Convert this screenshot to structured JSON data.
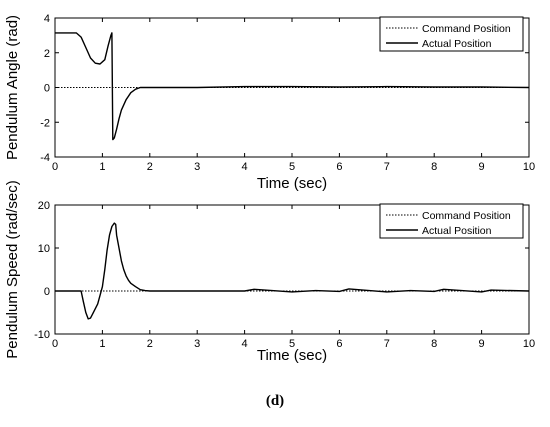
{
  "panel_label": "(d)",
  "chart_data": [
    {
      "type": "line",
      "title": "",
      "xlabel": "Time (sec)",
      "ylabel": "Pendulum Angle (rad)",
      "xlim": [
        0,
        10
      ],
      "ylim": [
        -4,
        4
      ],
      "xticks": [
        "0",
        "1",
        "2",
        "3",
        "4",
        "5",
        "6",
        "7",
        "8",
        "9",
        "10"
      ],
      "yticks": [
        "-4",
        "-2",
        "0",
        "2",
        "4"
      ],
      "grid": false,
      "legend_position": "top-right",
      "series": [
        {
          "name": "Command Position",
          "style": "dotted",
          "x": [
            0,
            10
          ],
          "y": [
            0,
            0
          ]
        },
        {
          "name": "Actual Position",
          "style": "solid",
          "x": [
            0,
            0.45,
            0.55,
            0.65,
            0.75,
            0.85,
            0.95,
            1.05,
            1.12,
            1.18,
            1.2,
            1.22,
            1.25,
            1.3,
            1.35,
            1.4,
            1.5,
            1.6,
            1.7,
            1.8,
            2.0,
            3.0,
            4.0,
            5.0,
            6.0,
            7.0,
            8.0,
            9.0,
            10.0
          ],
          "y": [
            3.14,
            3.14,
            2.9,
            2.3,
            1.7,
            1.4,
            1.35,
            1.6,
            2.4,
            3.0,
            3.14,
            -3.0,
            -2.9,
            -2.4,
            -1.8,
            -1.3,
            -0.7,
            -0.3,
            -0.1,
            0.0,
            0.0,
            0.0,
            0.05,
            0.05,
            0.03,
            0.05,
            0.03,
            0.03,
            0.0
          ]
        }
      ]
    },
    {
      "type": "line",
      "title": "",
      "xlabel": "Time (sec)",
      "ylabel": "Pendulum Speed (rad/sec)",
      "xlim": [
        0,
        10
      ],
      "ylim": [
        -10,
        20
      ],
      "xticks": [
        "0",
        "1",
        "2",
        "3",
        "4",
        "5",
        "6",
        "7",
        "8",
        "9",
        "10"
      ],
      "yticks": [
        "-10",
        "0",
        "10",
        "20"
      ],
      "grid": false,
      "legend_position": "top-right",
      "series": [
        {
          "name": "Command Position",
          "style": "dotted",
          "x": [
            0,
            10
          ],
          "y": [
            0,
            0
          ]
        },
        {
          "name": "Actual Position",
          "style": "solid",
          "x": [
            0,
            0.55,
            0.6,
            0.65,
            0.7,
            0.75,
            0.8,
            0.9,
            1.0,
            1.05,
            1.1,
            1.15,
            1.2,
            1.25,
            1.28,
            1.3,
            1.35,
            1.4,
            1.45,
            1.5,
            1.55,
            1.6,
            1.7,
            1.8,
            1.9,
            2.0,
            3.0,
            4.0,
            4.2,
            5.0,
            5.5,
            6.0,
            6.2,
            7.0,
            7.5,
            8.0,
            8.2,
            9.0,
            9.2,
            10.0
          ],
          "y": [
            0,
            0,
            -2.5,
            -5.0,
            -6.5,
            -6.3,
            -5.2,
            -3.0,
            1.0,
            5.0,
            9.5,
            13.0,
            15.0,
            15.8,
            15.5,
            13.0,
            10.0,
            7.0,
            5.0,
            3.5,
            2.5,
            1.8,
            1.0,
            0.3,
            0.1,
            0.0,
            0.0,
            0.0,
            0.4,
            -0.2,
            0.1,
            -0.1,
            0.5,
            -0.2,
            0.1,
            -0.1,
            0.4,
            -0.2,
            0.2,
            0.0
          ]
        }
      ]
    }
  ]
}
